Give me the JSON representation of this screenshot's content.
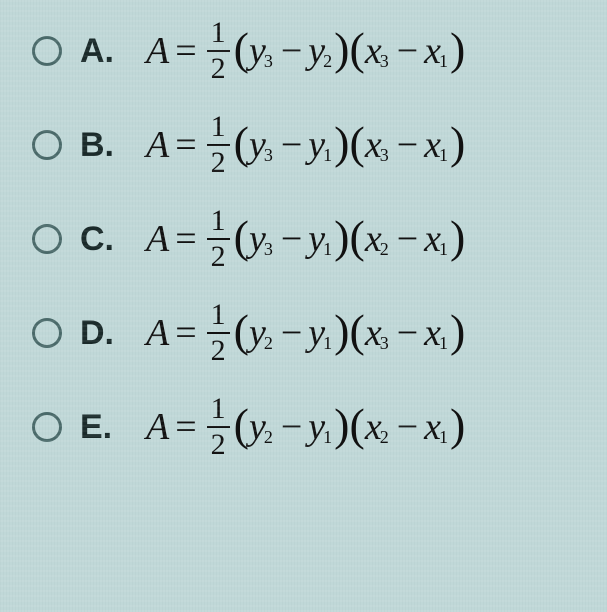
{
  "options": [
    {
      "letter": "A.",
      "y_first_sub": "3",
      "y_second_sub": "2",
      "x_first_sub": "3",
      "x_second_sub": "1"
    },
    {
      "letter": "B.",
      "y_first_sub": "3",
      "y_second_sub": "1",
      "x_first_sub": "3",
      "x_second_sub": "1"
    },
    {
      "letter": "C.",
      "y_first_sub": "3",
      "y_second_sub": "1",
      "x_first_sub": "2",
      "x_second_sub": "1"
    },
    {
      "letter": "D.",
      "y_first_sub": "2",
      "y_second_sub": "1",
      "x_first_sub": "3",
      "x_second_sub": "1"
    },
    {
      "letter": "E.",
      "y_first_sub": "2",
      "y_second_sub": "1",
      "x_first_sub": "2",
      "x_second_sub": "1"
    }
  ],
  "symbols": {
    "A": "A",
    "eq": "=",
    "num": "1",
    "den": "2",
    "lp": "(",
    "rp": ")",
    "y": "y",
    "x": "x",
    "minus": "−"
  }
}
